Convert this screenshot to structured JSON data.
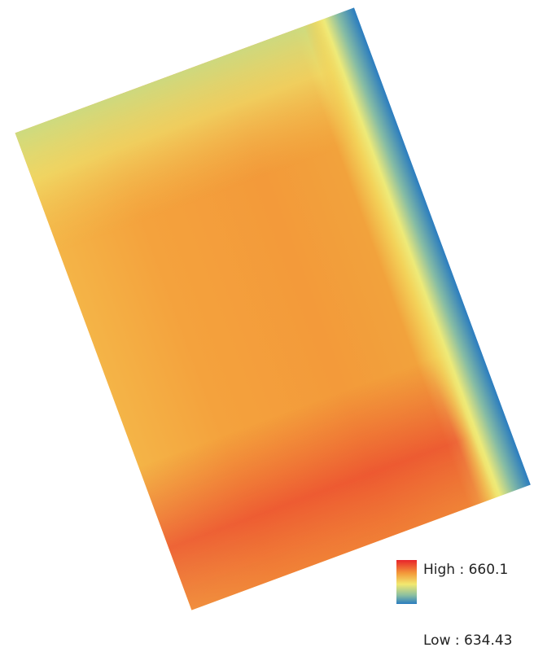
{
  "legend": {
    "high": "High : 660.1",
    "low": "Low : 634.43"
  }
}
